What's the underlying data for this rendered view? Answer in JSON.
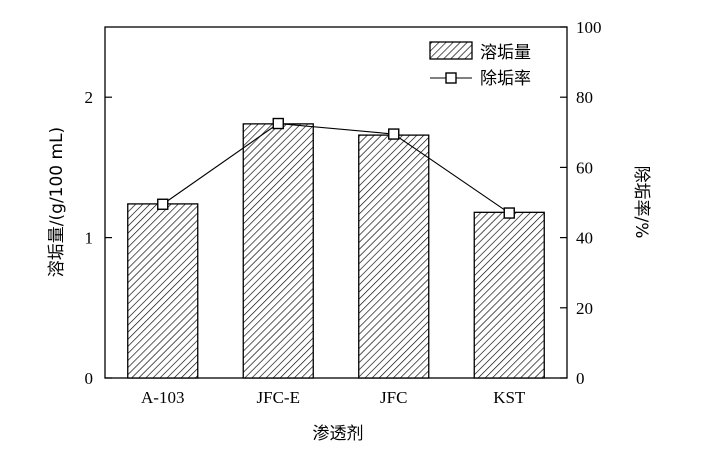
{
  "chart_data": {
    "type": "bar",
    "categories": [
      "A-103",
      "JFC-E",
      "JFC",
      "KST"
    ],
    "xlabel": "渗透剂",
    "ylabel": "溶垢量/(g/100 mL)",
    "y2label": "除垢率/%",
    "ylim": [
      0,
      2.5
    ],
    "y2lim": [
      0,
      100
    ],
    "yticks": [
      0,
      1,
      2
    ],
    "y2ticks": [
      0,
      20,
      40,
      60,
      80,
      100
    ],
    "series": [
      {
        "name": "溶垢量",
        "type": "bar",
        "axis": "left",
        "values": [
          1.24,
          1.81,
          1.73,
          1.18
        ]
      },
      {
        "name": "除垢率",
        "type": "line",
        "axis": "right",
        "marker": "open-square",
        "values": [
          49.5,
          72.5,
          69.5,
          47
        ]
      }
    ],
    "legend": {
      "position": "top-right"
    },
    "grid": false
  }
}
